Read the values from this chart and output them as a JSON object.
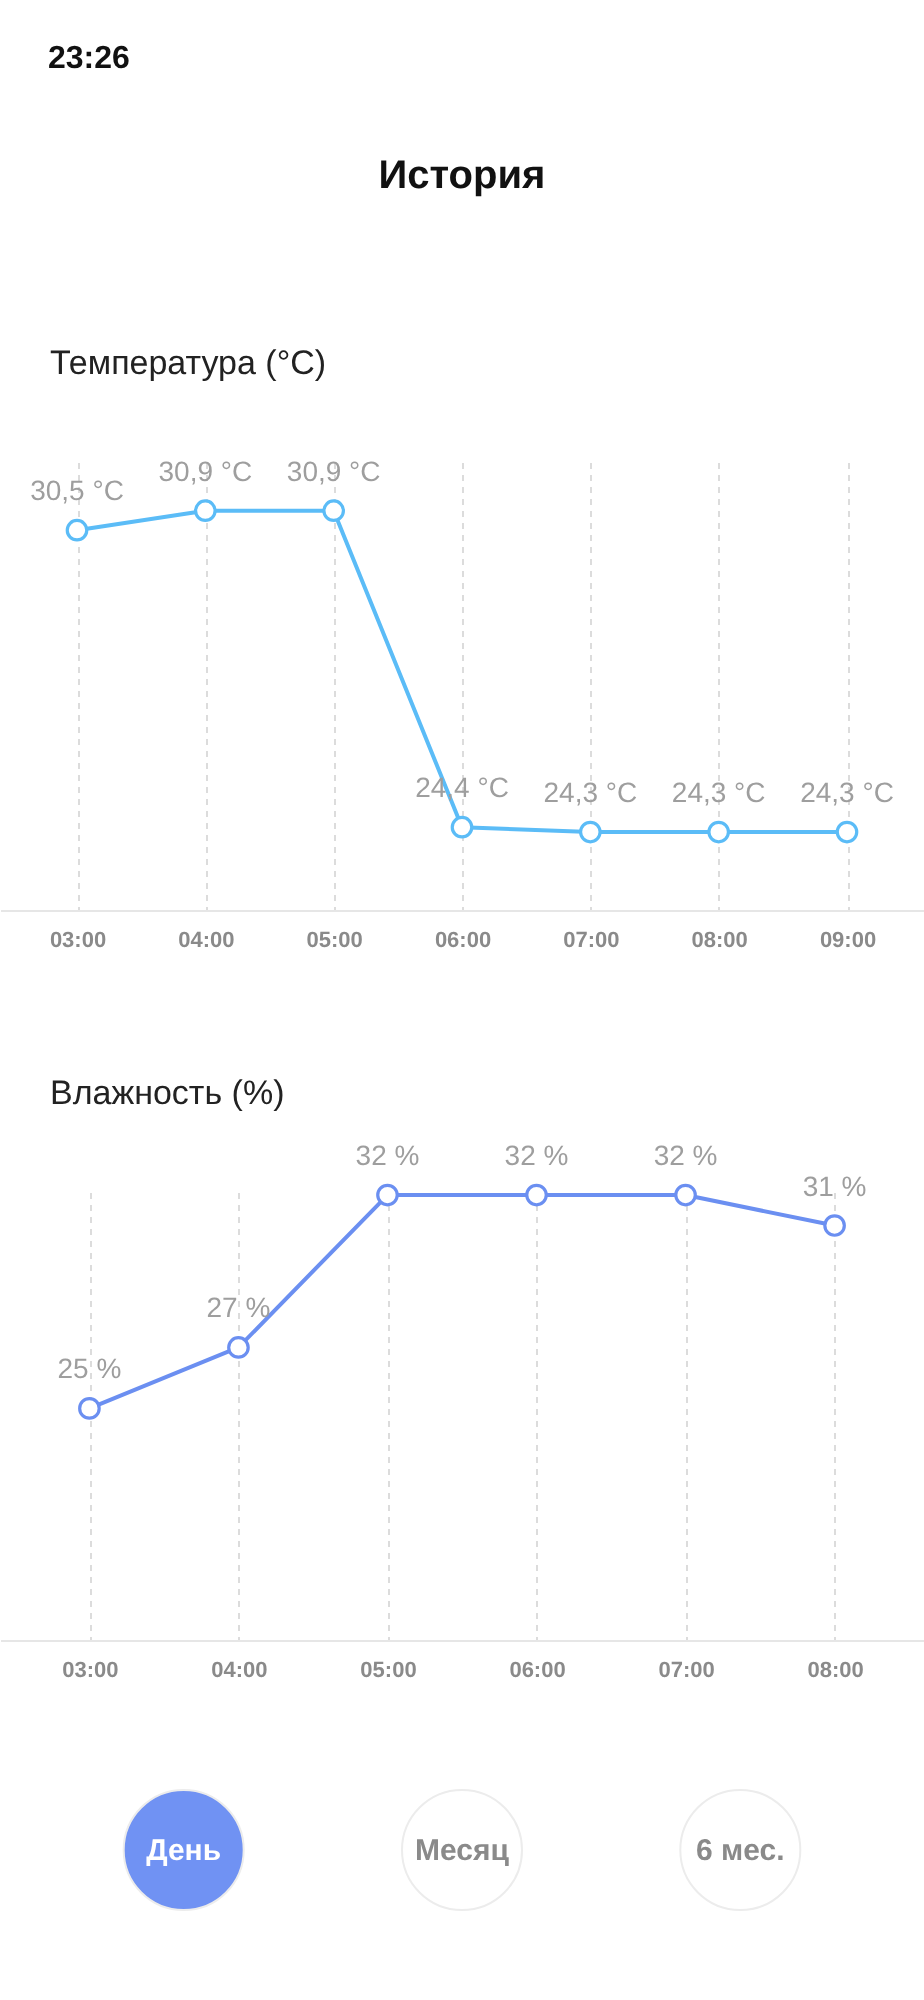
{
  "chart_data": [
    {
      "type": "other",
      "title": "История",
      "annotations": [
        "23:26"
      ]
    },
    {
      "type": "line",
      "title": "Температура (°C)",
      "categories": [
        "03:00",
        "04:00",
        "05:00",
        "06:00",
        "07:00",
        "08:00",
        "09:00"
      ],
      "series": [
        {
          "color": "#5bbcf7",
          "values": [
            30.5,
            30.9,
            30.9,
            24.4,
            24.3,
            24.3,
            24.3
          ],
          "value_labels": [
            "30,5 °C",
            "30,9 °C",
            "30,9 °C",
            "24,4 °C",
            "24,3 °C",
            "24,3 °C",
            "24,3 °C"
          ]
        }
      ],
      "ylim": [
        22.7,
        31.9
      ],
      "grid": "x",
      "marker": "circle",
      "line_style": "solid",
      "tick_labels": "x"
    },
    {
      "type": "line",
      "title": "Влажность (%)",
      "categories": [
        "03:00",
        "04:00",
        "05:00",
        "06:00",
        "07:00",
        "08:00"
      ],
      "series": [
        {
          "color": "#6b8ff1",
          "values": [
            25,
            27,
            32,
            32,
            32,
            31
          ],
          "value_labels": [
            "25 %",
            "27 %",
            "32 %",
            "32 %",
            "32 %",
            "31 %"
          ]
        }
      ],
      "ylim": [
        17.4,
        32.1
      ],
      "grid": "x",
      "marker": "circle",
      "line_style": "solid",
      "tick_labels": "x"
    },
    {
      "type": "other",
      "categories": [
        "День",
        "Месяц",
        "6 мес."
      ],
      "colors": [
        "#7092f3",
        "#ffffff",
        "#ffffff"
      ]
    }
  ]
}
